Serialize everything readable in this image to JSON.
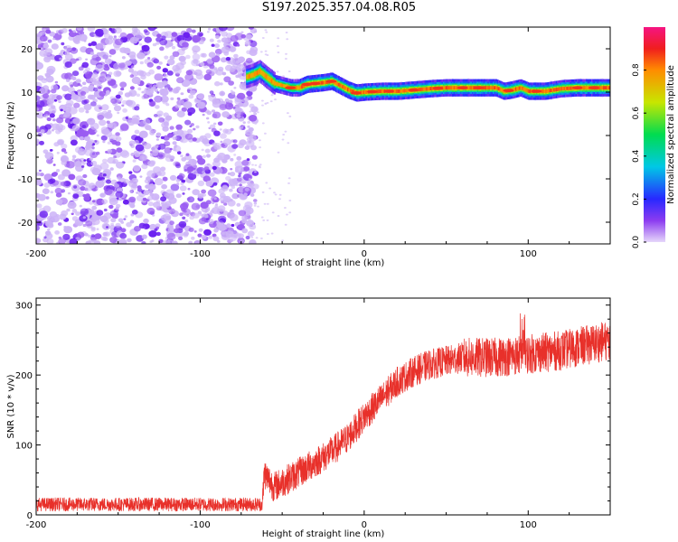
{
  "title": "S197.2025.357.04.08.R05",
  "chart_data": [
    {
      "type": "heatmap",
      "xlabel": "Height of straight line (km)",
      "ylabel": "Frequency (Hz)",
      "xlim": [
        -200,
        150
      ],
      "ylim": [
        -25,
        25
      ],
      "x_ticks": [
        -200,
        -100,
        0,
        100
      ],
      "y_ticks": [
        -20,
        -10,
        0,
        10,
        20
      ],
      "noise_region_x": [
        -200,
        -70
      ],
      "ridge": {
        "x": [
          -72,
          -68,
          -64,
          -60,
          -55,
          -50,
          -45,
          -40,
          -35,
          -30,
          -25,
          -20,
          -15,
          -10,
          -5,
          0,
          10,
          20,
          30,
          40,
          50,
          60,
          70,
          80,
          85,
          90,
          95,
          100,
          110,
          120,
          130,
          140,
          150
        ],
        "freq": [
          13.5,
          14.0,
          14.8,
          13.5,
          12.0,
          11.5,
          11.0,
          11.0,
          11.8,
          12.0,
          12.2,
          12.5,
          11.5,
          10.5,
          9.8,
          10.0,
          10.2,
          10.2,
          10.5,
          10.8,
          11.0,
          11.0,
          11.0,
          11.0,
          10.2,
          10.5,
          11.0,
          10.2,
          10.2,
          10.8,
          11.0,
          11.0,
          11.0
        ]
      },
      "colorbar": {
        "label": "Normalized spectral amplitude",
        "ticks": [
          0.0,
          0.2,
          0.4,
          0.6,
          0.8
        ],
        "range": [
          0,
          1
        ]
      }
    },
    {
      "type": "line",
      "xlabel": "Height of straight line (km)",
      "ylabel": "SNR (10 * v/v)",
      "xlim": [
        -200,
        150
      ],
      "ylim": [
        0,
        310
      ],
      "x_ticks": [
        -200,
        -100,
        0,
        100
      ],
      "y_ticks": [
        0,
        100,
        200,
        300
      ],
      "color": "#e8302a",
      "trend": {
        "x": [
          -200,
          -62,
          -61,
          -55,
          -40,
          -20,
          -10,
          0,
          10,
          20,
          30,
          40,
          50,
          60,
          80,
          100,
          120,
          150
        ],
        "y": [
          15,
          15,
          60,
          40,
          60,
          90,
          110,
          140,
          165,
          190,
          205,
          215,
          220,
          225,
          225,
          230,
          235,
          250
        ]
      },
      "noise_amplitude": 22
    }
  ]
}
